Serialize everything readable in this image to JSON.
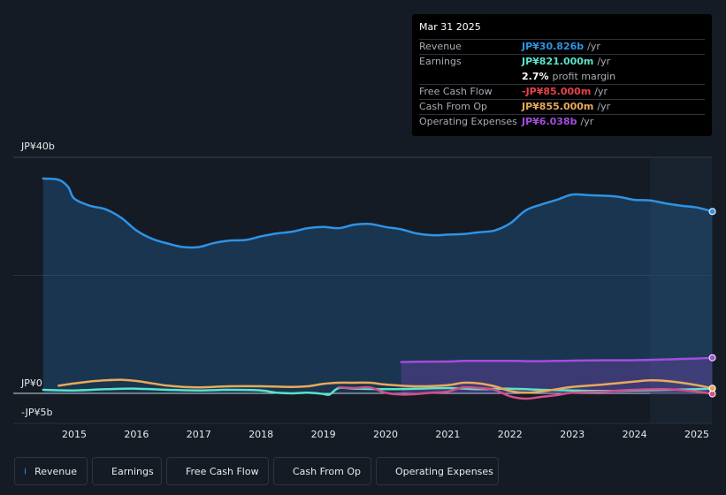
{
  "chart_data": {
    "type": "area",
    "title": "",
    "xlabel": "",
    "ylabel": "",
    "y_axis_labels": [
      "JP¥40b",
      "JP¥0",
      "-JP¥5b"
    ],
    "ylim": [
      -5,
      40
    ],
    "xlim": [
      2014.6,
      2025.3
    ],
    "x_ticks": [
      "2015",
      "2016",
      "2017",
      "2018",
      "2019",
      "2020",
      "2021",
      "2022",
      "2023",
      "2024",
      "2025"
    ],
    "forecast_shade_start": 2024.25,
    "series": [
      {
        "name": "Revenue",
        "color": "#2e93e6",
        "fill": true,
        "x": [
          2014.5,
          2014.75,
          2014.9,
          2015.0,
          2015.25,
          2015.5,
          2015.75,
          2016.0,
          2016.25,
          2016.5,
          2016.75,
          2017.0,
          2017.25,
          2017.5,
          2017.75,
          2018.0,
          2018.25,
          2018.5,
          2018.75,
          2019.0,
          2019.25,
          2019.5,
          2019.75,
          2020.0,
          2020.25,
          2020.5,
          2020.75,
          2021.0,
          2021.25,
          2021.5,
          2021.75,
          2022.0,
          2022.25,
          2022.5,
          2022.75,
          2023.0,
          2023.25,
          2023.5,
          2023.75,
          2024.0,
          2024.25,
          2024.5,
          2024.75,
          2025.0,
          2025.25
        ],
        "values": [
          36.4,
          36.2,
          35.0,
          33.0,
          31.8,
          31.2,
          29.8,
          27.6,
          26.2,
          25.4,
          24.8,
          24.8,
          25.5,
          25.9,
          26.0,
          26.6,
          27.1,
          27.4,
          28.0,
          28.2,
          28.0,
          28.6,
          28.7,
          28.2,
          27.8,
          27.1,
          26.8,
          26.9,
          27.0,
          27.3,
          27.6,
          28.8,
          31.0,
          32.0,
          32.8,
          33.7,
          33.6,
          33.5,
          33.3,
          32.8,
          32.7,
          32.2,
          31.8,
          31.5,
          30.826
        ]
      },
      {
        "name": "Earnings",
        "color": "#58e3c8",
        "x": [
          2014.5,
          2015.0,
          2015.5,
          2016.0,
          2016.5,
          2017.0,
          2017.5,
          2018.0,
          2018.25,
          2018.5,
          2018.75,
          2019.0,
          2019.1,
          2019.25,
          2019.5,
          2020.0,
          2020.5,
          2021.0,
          2021.5,
          2022.0,
          2022.5,
          2023.0,
          2023.5,
          2024.0,
          2024.5,
          2025.0,
          2025.25
        ],
        "values": [
          0.6,
          0.5,
          0.7,
          0.8,
          0.6,
          0.5,
          0.6,
          0.5,
          0.1,
          0.0,
          0.1,
          -0.1,
          -0.2,
          0.9,
          0.8,
          0.7,
          0.8,
          0.9,
          0.7,
          0.8,
          0.6,
          0.5,
          0.4,
          0.5,
          0.6,
          0.7,
          0.821
        ]
      },
      {
        "name": "Free Cash Flow",
        "color": "#d44f8a",
        "x": [
          2019.25,
          2019.5,
          2019.75,
          2020.0,
          2020.25,
          2020.5,
          2020.75,
          2021.0,
          2021.25,
          2021.5,
          2021.75,
          2022.0,
          2022.25,
          2022.5,
          2022.75,
          2023.0,
          2023.5,
          2024.0,
          2024.5,
          2025.0,
          2025.25
        ],
        "values": [
          1.0,
          0.9,
          1.0,
          0.1,
          -0.2,
          -0.1,
          0.1,
          0.3,
          1.0,
          0.9,
          0.6,
          -0.5,
          -0.9,
          -0.6,
          -0.3,
          0.1,
          0.3,
          0.6,
          0.7,
          0.3,
          -0.085
        ]
      },
      {
        "name": "Cash From Op",
        "color": "#e8a95b",
        "x": [
          2014.75,
          2015.0,
          2015.25,
          2015.5,
          2015.75,
          2016.0,
          2016.25,
          2016.5,
          2016.75,
          2017.0,
          2017.5,
          2018.0,
          2018.5,
          2018.75,
          2019.0,
          2019.25,
          2019.5,
          2019.75,
          2020.0,
          2020.5,
          2021.0,
          2021.25,
          2021.5,
          2021.75,
          2022.0,
          2022.25,
          2022.5,
          2022.75,
          2023.0,
          2023.5,
          2024.0,
          2024.25,
          2024.5,
          2024.75,
          2025.0,
          2025.25
        ],
        "values": [
          1.3,
          1.7,
          2.0,
          2.2,
          2.3,
          2.1,
          1.7,
          1.3,
          1.1,
          1.0,
          1.2,
          1.2,
          1.1,
          1.2,
          1.6,
          1.8,
          1.8,
          1.8,
          1.5,
          1.2,
          1.4,
          1.8,
          1.7,
          1.2,
          0.4,
          0.1,
          0.3,
          0.7,
          1.1,
          1.5,
          2.0,
          2.2,
          2.1,
          1.8,
          1.4,
          0.855
        ]
      },
      {
        "name": "Operating Expenses",
        "color": "#a34dde",
        "fill": true,
        "x": [
          2020.25,
          2020.5,
          2021.0,
          2021.25,
          2021.5,
          2022.0,
          2022.5,
          2023.0,
          2023.5,
          2024.0,
          2024.5,
          2025.0,
          2025.25
        ],
        "values": [
          5.3,
          5.35,
          5.4,
          5.5,
          5.5,
          5.5,
          5.45,
          5.55,
          5.6,
          5.62,
          5.75,
          5.9,
          6.038
        ]
      }
    ]
  },
  "tooltip": {
    "date": "Mar 31 2025",
    "rows": [
      {
        "label": "Revenue",
        "value": "JP¥30.826b",
        "unit": "/yr",
        "color": "#2e93e6"
      },
      {
        "label": "Earnings",
        "value": "JP¥821.000m",
        "unit": "/yr",
        "color": "#58e3c8"
      },
      {
        "label": "",
        "value": "2.7%",
        "unit": "profit margin",
        "color": "#ffffff"
      },
      {
        "label": "Free Cash Flow",
        "value": "-JP¥85.000m",
        "unit": "/yr",
        "color": "#e8414a"
      },
      {
        "label": "Cash From Op",
        "value": "JP¥855.000m",
        "unit": "/yr",
        "color": "#e8a95b"
      },
      {
        "label": "Operating Expenses",
        "value": "JP¥6.038b",
        "unit": "/yr",
        "color": "#a34dde"
      }
    ]
  },
  "legend": [
    {
      "label": "Revenue",
      "color": "#2e93e6"
    },
    {
      "label": "Earnings",
      "color": "#58e3c8"
    },
    {
      "label": "Free Cash Flow",
      "color": "#d44f8a"
    },
    {
      "label": "Cash From Op",
      "color": "#e8a95b"
    },
    {
      "label": "Operating Expenses",
      "color": "#a34dde"
    }
  ]
}
